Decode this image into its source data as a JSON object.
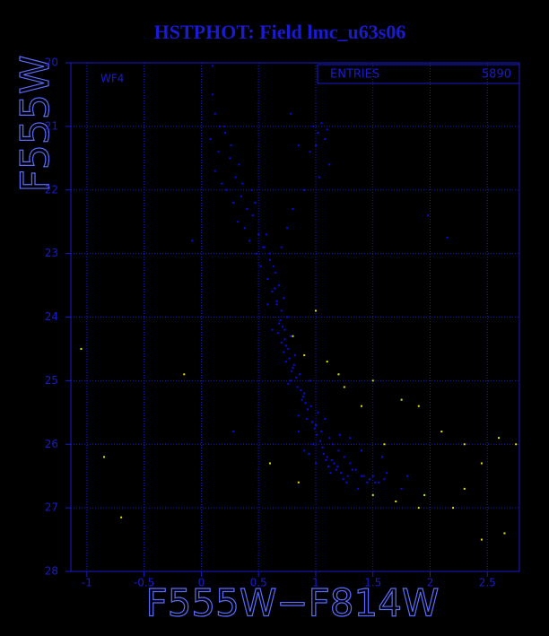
{
  "chart_data": {
    "type": "scatter",
    "title": "HSTPHOT: Field lmc_u63s06",
    "x_label": "F555W−F814W",
    "y_label": "F555W",
    "panel_label": "WF4",
    "stats_label": "ENTRIES",
    "stats_value": "5890",
    "xlim": [
      -1.14,
      2.78
    ],
    "ylim": [
      20,
      28
    ],
    "y_reversed": true,
    "grid": true,
    "xticks": [
      -1,
      -0.5,
      0,
      0.5,
      1,
      1.5,
      2,
      2.5
    ],
    "yticks": [
      20,
      21,
      22,
      23,
      24,
      25,
      26,
      27,
      28
    ],
    "series": [
      {
        "color": "#0a0aee",
        "x": [
          0.1,
          0.12,
          0.2,
          0.08,
          0.15,
          0.25,
          0.12,
          0.3,
          0.18,
          0.22,
          0.35,
          0.28,
          0.4,
          0.32,
          0.45,
          0.38,
          0.5,
          0.42,
          0.55,
          0.48,
          0.6,
          0.52,
          0.65,
          0.58,
          0.68,
          0.62,
          0.72,
          0.66,
          0.7,
          0.75,
          0.68,
          0.73,
          0.78,
          0.7,
          0.76,
          0.82,
          0.74,
          0.8,
          0.86,
          0.78,
          0.84,
          0.9,
          0.95,
          0.88,
          0.96,
          1.02,
          0.92,
          1.0,
          1.08,
          1.05,
          1.12,
          0.98,
          1.15,
          1.2,
          1.1,
          1.25,
          1.3,
          1.18,
          1.35,
          1.4,
          1.28,
          1.45,
          1.5,
          1.55,
          1.6,
          1.0,
          0.9,
          0.85,
          1.3,
          1.4,
          0.98,
          1.02,
          1.05,
          1.08,
          1.0,
          1.1,
          0.95,
          1.12,
          1.03,
          0.78,
          0.85,
          0.9,
          0.8,
          0.75,
          0.7,
          -0.08,
          1.98,
          2.15,
          0.1,
          0.28,
          1.8,
          0.64,
          0.66,
          0.69,
          0.71,
          0.73,
          0.67,
          0.72,
          0.74,
          0.77,
          0.79,
          0.81,
          0.83,
          0.76,
          0.87,
          0.89,
          0.91,
          0.93,
          0.85,
          0.97,
          0.99,
          1.01,
          1.04,
          1.06,
          0.94,
          1.09,
          1.11,
          1.13,
          1.16,
          1.19,
          1.22,
          1.24,
          1.27,
          1.32,
          1.37,
          1.42,
          1.47,
          1.52,
          1.07,
          1.14,
          1.21,
          0.6,
          0.63,
          0.57,
          0.54,
          0.47,
          0.44,
          0.36,
          0.33,
          0.26,
          0.21,
          0.16,
          1.75,
          1.62,
          1.58,
          0.58,
          0.62
        ],
        "values": [
          20.5,
          20.8,
          21.0,
          21.2,
          21.4,
          21.5,
          21.7,
          21.8,
          21.9,
          22.0,
          22.1,
          22.2,
          22.3,
          22.5,
          22.4,
          22.6,
          22.7,
          22.8,
          22.9,
          23.0,
          23.1,
          23.2,
          23.3,
          23.4,
          23.5,
          23.6,
          23.7,
          23.8,
          23.9,
          24.0,
          24.1,
          24.2,
          24.3,
          24.4,
          24.5,
          24.6,
          24.7,
          24.8,
          24.9,
          25.0,
          25.1,
          25.2,
          25.0,
          25.3,
          25.4,
          25.5,
          25.6,
          25.7,
          25.6,
          25.8,
          25.9,
          26.0,
          26.0,
          26.1,
          26.2,
          26.2,
          26.3,
          26.4,
          26.4,
          26.5,
          26.5,
          26.6,
          26.5,
          26.6,
          26.55,
          26.3,
          26.1,
          25.8,
          25.9,
          26.1,
          21.0,
          21.1,
          20.95,
          21.2,
          21.3,
          21.05,
          21.4,
          21.6,
          21.8,
          20.8,
          21.3,
          22.0,
          22.3,
          22.6,
          22.9,
          22.8,
          22.4,
          22.75,
          20.05,
          25.8,
          26.5,
          23.55,
          23.75,
          24.05,
          24.15,
          24.35,
          24.25,
          24.55,
          24.45,
          24.65,
          24.85,
          24.75,
          24.95,
          25.05,
          25.15,
          25.25,
          25.35,
          25.45,
          25.55,
          25.65,
          25.75,
          25.85,
          25.95,
          26.05,
          26.15,
          26.25,
          26.35,
          26.45,
          26.3,
          26.35,
          26.45,
          26.55,
          26.6,
          26.4,
          26.7,
          26.5,
          26.55,
          26.6,
          26.15,
          26.25,
          25.85,
          23.0,
          23.2,
          22.7,
          22.9,
          22.2,
          22.0,
          21.9,
          21.6,
          21.3,
          21.1,
          21.0,
          26.7,
          26.45,
          26.2,
          23.8,
          24.2
        ]
      },
      {
        "color": "#e6e600",
        "x": [
          -1.05,
          -0.15,
          -0.7,
          -0.85,
          0.9,
          1.1,
          1.2,
          1.25,
          1.5,
          1.75,
          1.9,
          2.1,
          2.3,
          2.45,
          2.3,
          2.6,
          2.75,
          2.45,
          2.65,
          1.9,
          1.7,
          1.5,
          0.6,
          0.85,
          1.6,
          1.4,
          0.8,
          1.0,
          2.2,
          1.95
        ],
        "values": [
          24.5,
          24.9,
          27.15,
          26.2,
          24.6,
          24.7,
          24.9,
          25.1,
          25.0,
          25.3,
          25.4,
          25.8,
          26.0,
          26.3,
          26.7,
          25.9,
          26.0,
          27.5,
          27.4,
          27.0,
          26.9,
          26.8,
          26.3,
          26.6,
          26.0,
          25.4,
          24.3,
          23.9,
          27.0,
          26.8
        ]
      }
    ]
  }
}
